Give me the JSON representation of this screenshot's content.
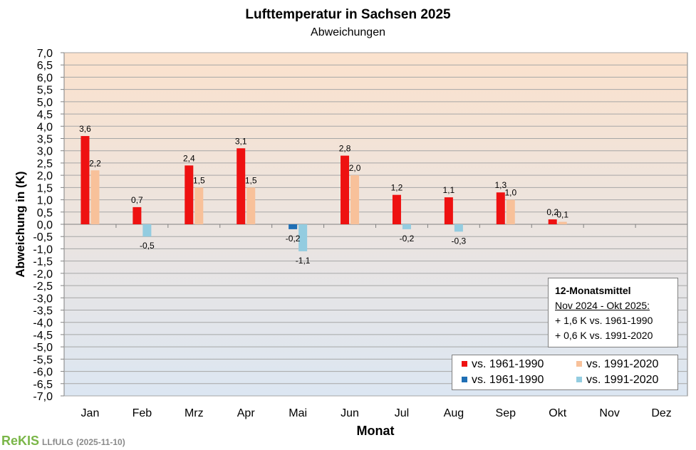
{
  "chart_data": {
    "type": "bar",
    "title": "Lufttemperatur in Sachsen 2025",
    "subtitle": "Abweichungen",
    "xlabel": "Monat",
    "ylabel": "Abweichung in (K)",
    "ylim": [
      -7.0,
      7.0
    ],
    "ytick_step": 0.5,
    "grid": true,
    "categories": [
      "Jan",
      "Feb",
      "Mrz",
      "Apr",
      "Mai",
      "Jun",
      "Jul",
      "Aug",
      "Sep",
      "Okt",
      "Nov",
      "Dez"
    ],
    "series": [
      {
        "name": "vs. 1961-1990",
        "color_positive": "#ee1111",
        "color_negative": "#1f6fb5",
        "values": [
          3.6,
          0.7,
          2.4,
          3.1,
          -0.2,
          2.8,
          1.2,
          1.1,
          1.3,
          0.2,
          null,
          null
        ],
        "labels": [
          "3,6",
          "0,7",
          "2,4",
          "3,1",
          "-0,2",
          "2,8",
          "1,2",
          "1,1",
          "1,3",
          "0,2",
          "",
          ""
        ]
      },
      {
        "name": "vs. 1991-2020",
        "color_positive": "#f8c19a",
        "color_negative": "#93cce0",
        "values": [
          2.2,
          -0.5,
          1.5,
          1.5,
          -1.1,
          2.0,
          -0.2,
          -0.3,
          1.0,
          0.1,
          null,
          null
        ],
        "labels": [
          "2,2",
          "-0,5",
          "1,5",
          "1,5",
          "-1,1",
          "2,0",
          "-0,2",
          "-0,3",
          "1,0",
          "0,1",
          "",
          ""
        ]
      }
    ],
    "legend": {
      "position": "bottom-right",
      "entries": [
        {
          "label": "vs. 1961-1990",
          "color": "#ee1111"
        },
        {
          "label": "vs. 1991-2020",
          "color": "#f8c19a"
        },
        {
          "label": "vs. 1961-1990",
          "color": "#1f6fb5"
        },
        {
          "label": "vs. 1991-2020",
          "color": "#93cce0"
        }
      ]
    }
  },
  "info_box": {
    "title": "12-Monatsmittel",
    "period": "Nov 2024 - Okt 2025:",
    "line1": "+ 1,6 K vs. 1961-1990",
    "line2": "+ 0,6 K vs. 1991-2020"
  },
  "footer": {
    "logo": "ReKIS",
    "org": "LLfULG",
    "date": "(2025-11-10)"
  },
  "colors": {
    "plot_bg_top": "#fbe2cd",
    "plot_bg_bottom": "#dce6f2",
    "grid": "#a6a6a6",
    "zero_line": "#808080"
  }
}
